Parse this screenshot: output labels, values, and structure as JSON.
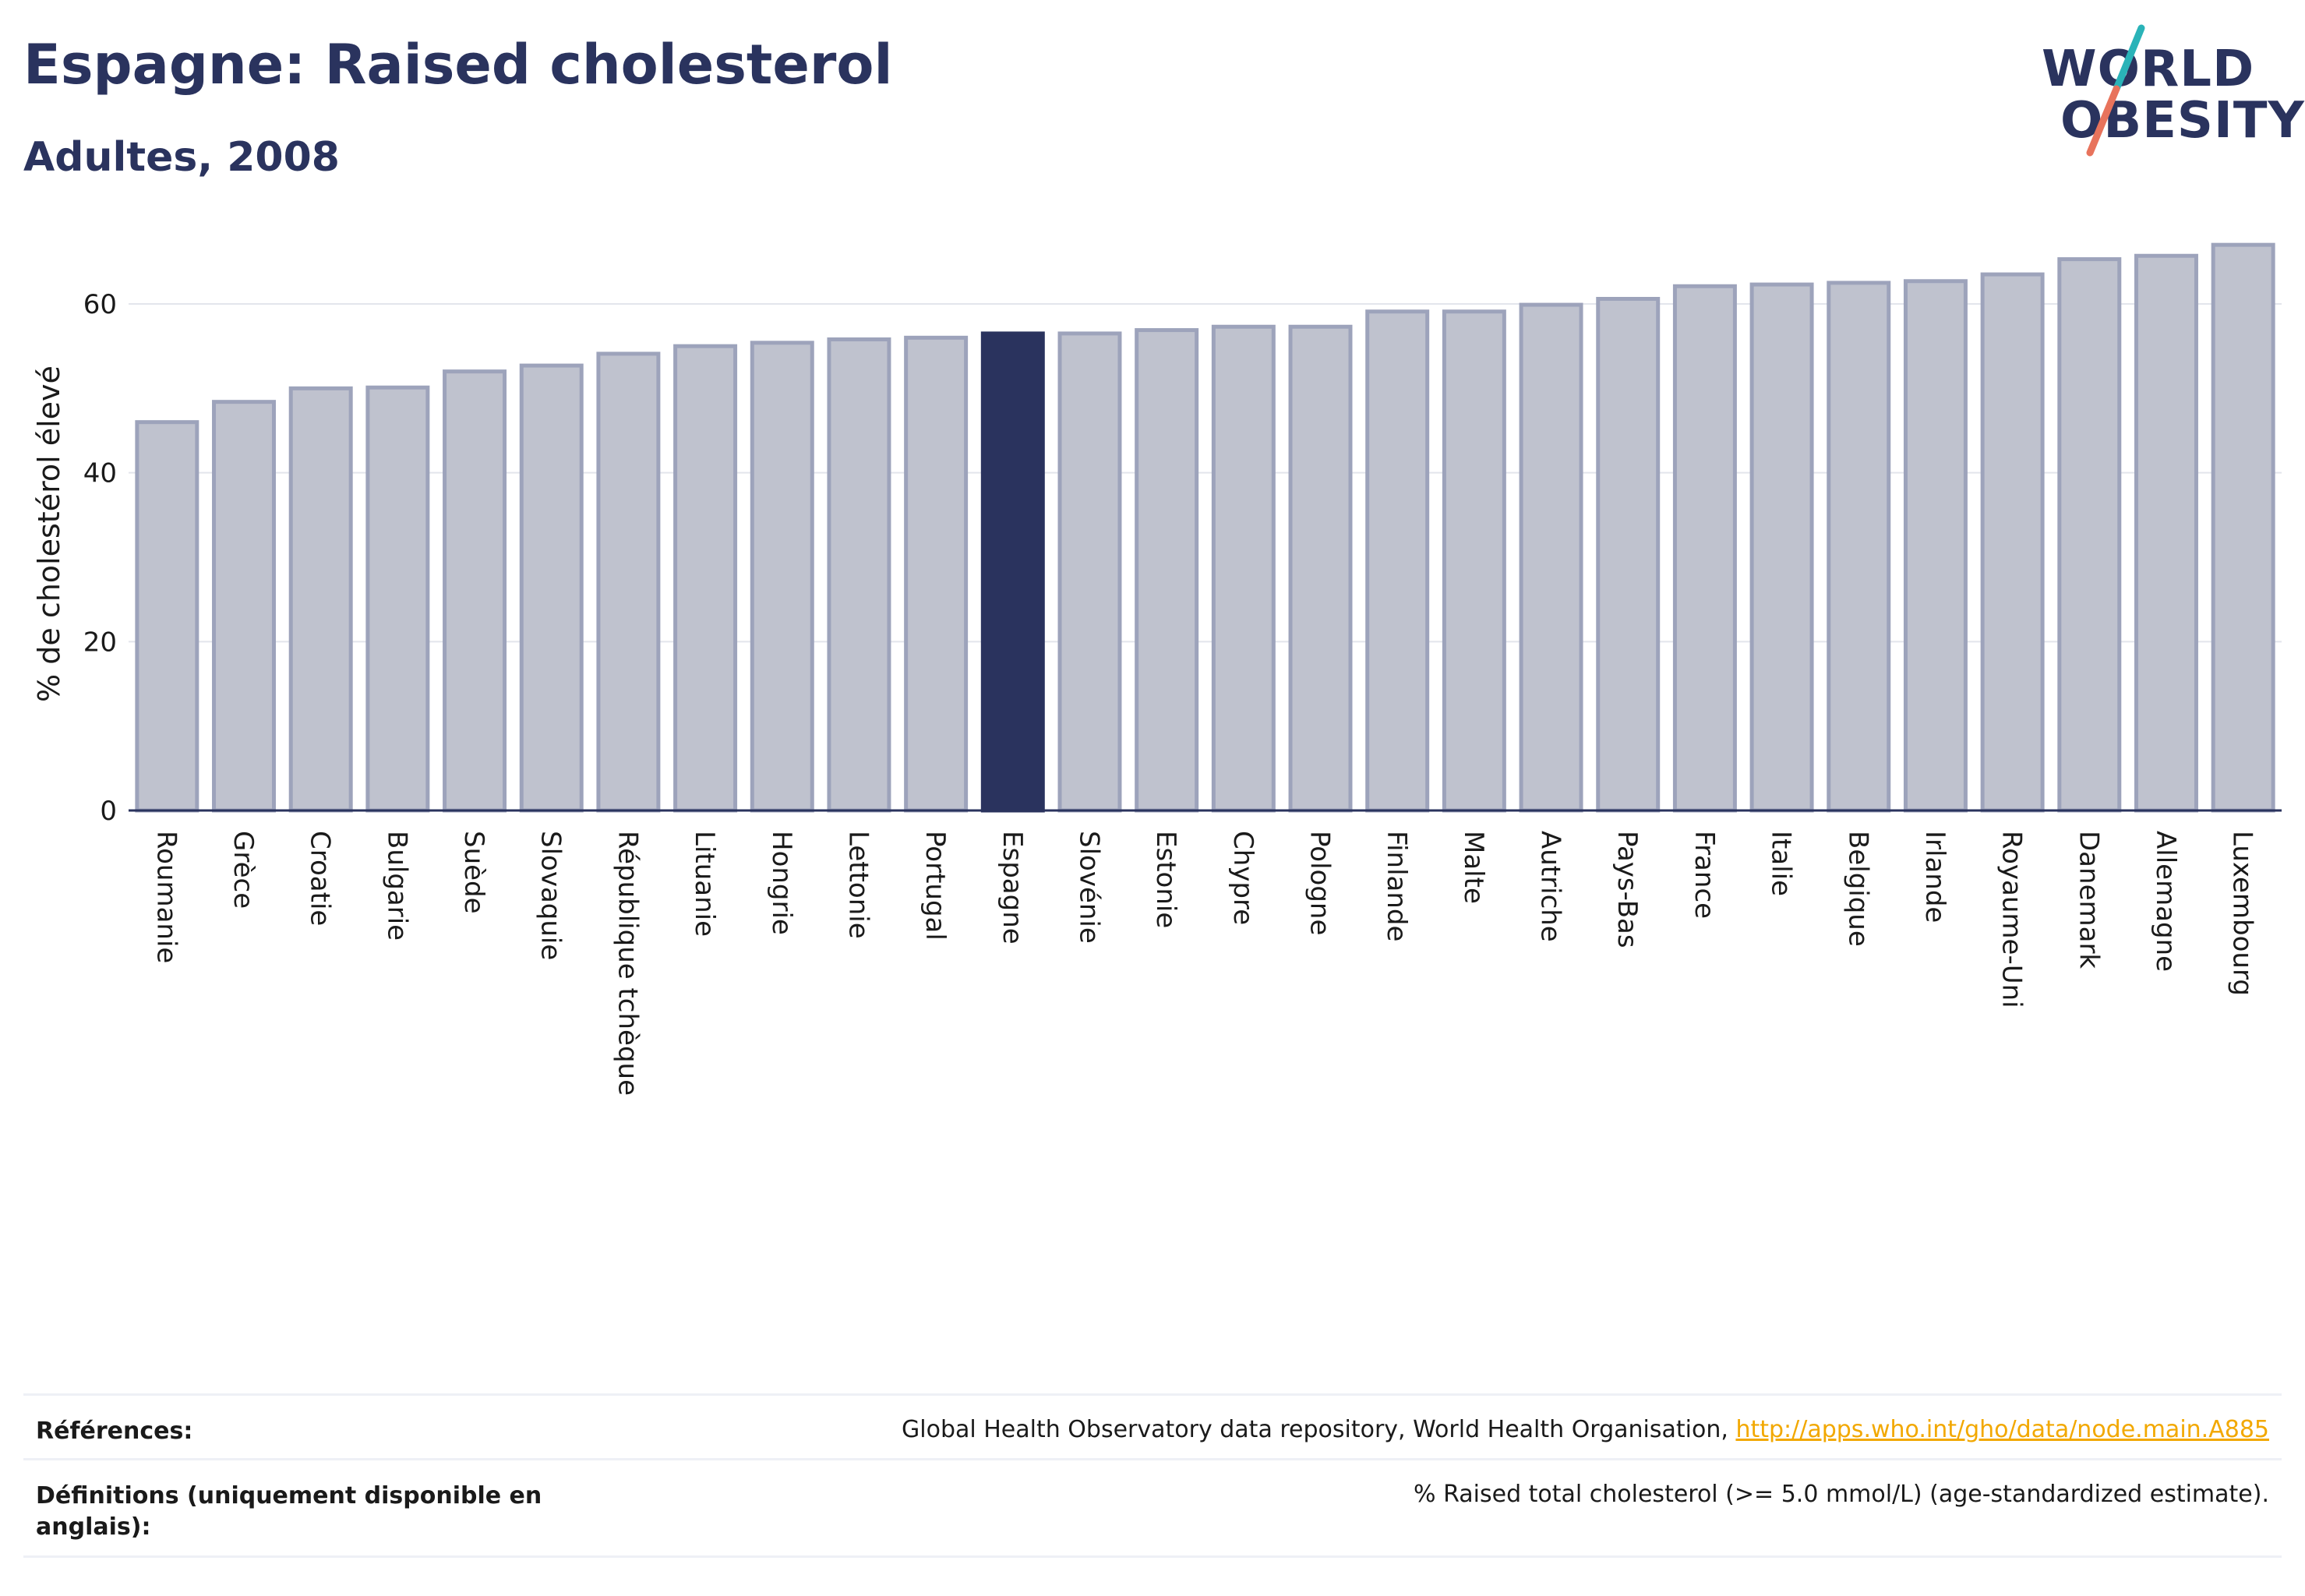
{
  "header": {
    "title": "Espagne: Raised cholesterol",
    "subtitle": "Adultes, 2008"
  },
  "logo": {
    "line1": "WORLD",
    "line2": "OBESITY",
    "accent_colors": [
      "#2ab3b8",
      "#e8735c"
    ]
  },
  "colors": {
    "bar_default": "#bfc2ce",
    "bar_border": "#9da3bb",
    "bar_highlight": "#2a335e",
    "grid": "#e3e5ec",
    "axis": "#2a335e",
    "link": "#f2a800"
  },
  "chart_data": {
    "type": "bar",
    "ylabel": "% de cholestérol élevé",
    "xlabel": "",
    "ylim": [
      0,
      70
    ],
    "yticks": [
      0,
      20,
      40,
      60
    ],
    "grid": true,
    "highlight": "Espagne",
    "categories": [
      "Roumanie",
      "Grèce",
      "Croatie",
      "Bulgarie",
      "Suède",
      "Slovaquie",
      "République tchèque",
      "Lituanie",
      "Hongrie",
      "Lettonie",
      "Portugal",
      "Espagne",
      "Slovénie",
      "Estonie",
      "Chypre",
      "Pologne",
      "Finlande",
      "Malte",
      "Autriche",
      "Pays-Bas",
      "France",
      "Italie",
      "Belgique",
      "Irlande",
      "Royaume-Uni",
      "Danemark",
      "Allemagne",
      "Luxembourg"
    ],
    "values": [
      46.0,
      48.4,
      50.0,
      50.1,
      52.0,
      52.7,
      54.1,
      55.0,
      55.4,
      55.8,
      56.0,
      56.5,
      56.5,
      56.9,
      57.3,
      57.3,
      59.1,
      59.1,
      59.9,
      60.6,
      62.1,
      62.3,
      62.5,
      62.7,
      63.5,
      65.3,
      65.7,
      67.0
    ]
  },
  "references": {
    "label": "Références:",
    "text": "Global Health Observatory data repository, World Health Organisation, ",
    "link": "http://apps.who.int/gho/data/node.main.A885"
  },
  "definitions": {
    "label": "Définitions (uniquement disponible en anglais):",
    "text": "% Raised total cholesterol (>= 5.0 mmol/L) (age-standardized estimate)."
  }
}
